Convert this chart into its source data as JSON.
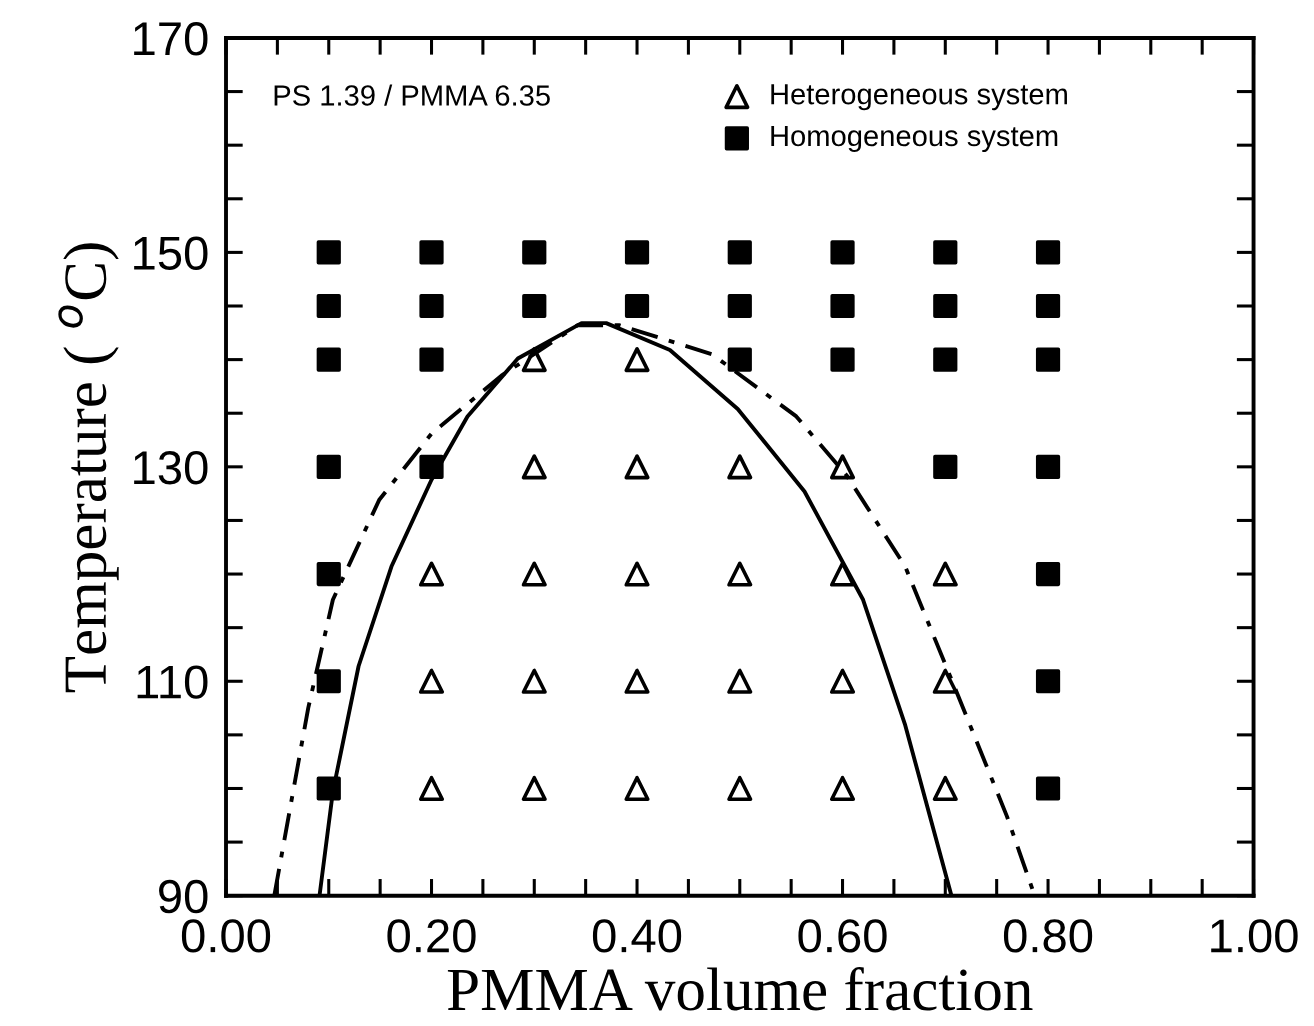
{
  "chart_data": {
    "type": "scatter",
    "xlabel": "PMMA volume fraction",
    "ylabel": "Temperature ( $^{o}$C)",
    "annotations": [
      "PS 1.39 / PMMA 6.35"
    ],
    "xlim": [
      0,
      1
    ],
    "ylim": [
      90,
      170
    ],
    "xticks": [
      {
        "value": 0,
        "label": "0.00"
      },
      {
        "value": 0.05,
        "label": null
      },
      {
        "value": 0.1,
        "label": null
      },
      {
        "value": 0.15,
        "label": null
      },
      {
        "value": 0.2,
        "label": "0.20"
      },
      {
        "value": 0.25,
        "label": null
      },
      {
        "value": 0.3,
        "label": null
      },
      {
        "value": 0.35,
        "label": null
      },
      {
        "value": 0.4,
        "label": "0.40"
      },
      {
        "value": 0.45,
        "label": null
      },
      {
        "value": 0.5,
        "label": null
      },
      {
        "value": 0.55,
        "label": null
      },
      {
        "value": 0.6,
        "label": "0.60"
      },
      {
        "value": 0.65,
        "label": null
      },
      {
        "value": 0.7,
        "label": null
      },
      {
        "value": 0.75,
        "label": null
      },
      {
        "value": 0.8,
        "label": "0.80"
      },
      {
        "value": 0.85,
        "label": null
      },
      {
        "value": 0.9,
        "label": null
      },
      {
        "value": 0.95,
        "label": null
      },
      {
        "value": 1,
        "label": "1.00"
      }
    ],
    "yticks": [
      90,
      {
        "value": 95,
        "label": null
      },
      {
        "value": 100,
        "label": null
      },
      {
        "value": 105,
        "label": null
      },
      110,
      {
        "value": 115,
        "label": null
      },
      {
        "value": 120,
        "label": null
      },
      {
        "value": 125,
        "label": null
      },
      130,
      {
        "value": 135,
        "label": null
      },
      {
        "value": 140,
        "label": null
      },
      {
        "value": 145,
        "label": null
      },
      150,
      {
        "value": 155,
        "label": null
      },
      {
        "value": 160,
        "label": null
      },
      {
        "value": 165,
        "label": null
      },
      170
    ],
    "grid": false,
    "legend": "top right",
    "series": [
      {
        "name": "Heterogeneous system",
        "marker": "triangle",
        "color": "#000000",
        "x": [
          0.2,
          0.2,
          0.2,
          0.3,
          0.3,
          0.3,
          0.3,
          0.3,
          0.4,
          0.4,
          0.4,
          0.4,
          0.4,
          0.5,
          0.5,
          0.5,
          0.5,
          0.6,
          0.6,
          0.6,
          0.6,
          0.7,
          0.7,
          0.7
        ],
        "values": [
          120,
          110,
          100,
          140,
          130,
          120,
          110,
          100,
          140,
          130,
          120,
          110,
          100,
          130,
          120,
          110,
          100,
          130,
          120,
          110,
          100,
          120,
          110,
          100
        ]
      },
      {
        "name": "Homogeneous system",
        "marker": "square",
        "color": "#000000",
        "x": [
          0.1,
          0.1,
          0.1,
          0.1,
          0.1,
          0.1,
          0.1,
          0.2,
          0.2,
          0.2,
          0.2,
          0.3,
          0.3,
          0.4,
          0.4,
          0.5,
          0.5,
          0.5,
          0.6,
          0.6,
          0.6,
          0.7,
          0.7,
          0.7,
          0.7,
          0.8,
          0.8,
          0.8,
          0.8,
          0.8,
          0.8,
          0.8
        ],
        "values": [
          150,
          145,
          140,
          130,
          120,
          110,
          100,
          150,
          145,
          140,
          130,
          150,
          145,
          150,
          145,
          150,
          145,
          140,
          150,
          145,
          140,
          150,
          145,
          140,
          130,
          150,
          145,
          140,
          130,
          120,
          110,
          100
        ]
      },
      {
        "type": "line",
        "line_style": "solid",
        "marker": "none",
        "color": "#000000",
        "x": [
          0.091,
          0.104,
          0.129,
          0.161,
          0.2,
          0.235,
          0.284,
          0.346,
          0.37,
          0.432,
          0.498,
          0.563,
          0.62,
          0.661,
          0.706
        ],
        "values": [
          90,
          99.7,
          111.4,
          120.7,
          128.8,
          134.7,
          140.1,
          143.4,
          143.4,
          140.9,
          135.4,
          127.7,
          117.6,
          105.9,
          90
        ]
      },
      {
        "type": "line",
        "line_style": "dashed",
        "marker": "none",
        "color": "#000000",
        "x": [
          0.047,
          0.08,
          0.104,
          0.149,
          0.2,
          0.268,
          0.342,
          0.383,
          0.473,
          0.555,
          0.604,
          0.661,
          0.711,
          0.76,
          0.787
        ],
        "values": [
          90,
          107.5,
          117.6,
          126.9,
          133.1,
          138.5,
          143.2,
          143.2,
          140.5,
          134.7,
          129.2,
          120.7,
          109,
          97.4,
          90
        ]
      }
    ]
  }
}
